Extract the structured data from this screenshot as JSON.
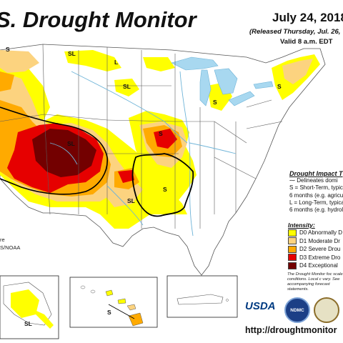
{
  "header": {
    "title": "S. Drought Monitor",
    "date": "July 24, 2018",
    "released": "(Released Thursday, Jul. 26,",
    "valid": "Valid 8 a.m. EDT"
  },
  "impact": {
    "title": "Drought Impact T",
    "delineates": "Delineates domi",
    "short_term_1": "S = Short-Term, typic",
    "short_term_2": "6 months (e.g. agricu",
    "long_term_1": "L = Long-Term, typica",
    "long_term_2": "6 months (e.g. hydrol"
  },
  "legend": {
    "title": "Intensity:",
    "items": [
      {
        "label": "D0 Abnormally D",
        "color": "#ffff00"
      },
      {
        "label": "D1 Moderate Dr",
        "color": "#fcd37f"
      },
      {
        "label": "D2 Severe Drou",
        "color": "#ffaa00"
      },
      {
        "label": "D3 Extreme Dro",
        "color": "#e60000"
      },
      {
        "label": "D4 Exceptional",
        "color": "#730000"
      }
    ]
  },
  "footnote": "The Drought Monitor foc scale conditions. Local c vary. See accompanying forecast statements.",
  "author": {
    "line1": "re",
    "line2": "S/NOAA"
  },
  "logos": {
    "usda": "USDA",
    "ndmc": "NDMC"
  },
  "url": "http://droughtmonitor",
  "map_labels": {
    "sl_nw": "S",
    "sl_nw2": "SL",
    "sl_mt": "SL",
    "l_nd": "L",
    "sl_sd": "SL",
    "sl_4c": "SL",
    "s_ks": "S",
    "sl_tx": "SL",
    "s_ar": "S",
    "s_mi": "S",
    "s_ne": "S",
    "sl_ak": "SL",
    "s_hi": "S"
  },
  "colors": {
    "water": "#a8d8f0",
    "state_line": "#5a5a5a",
    "river": "#6fb4d8",
    "land": "#ffffff"
  }
}
